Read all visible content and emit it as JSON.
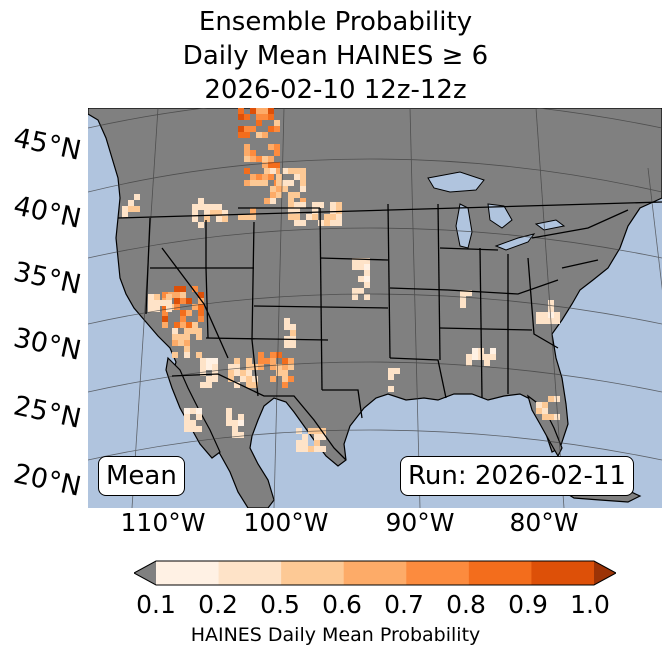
{
  "title": {
    "line1": "Ensemble Probability",
    "line2": "Daily Mean HAINES ≥ 6",
    "line3": "2026-02-10 12z-12z"
  },
  "badges": {
    "statistic": "Mean",
    "run": "Run: 2026-02-11"
  },
  "lat_labels": [
    "45°N",
    "40°N",
    "35°N",
    "30°N",
    "25°N",
    "20°N"
  ],
  "lon_labels": [
    "110°W",
    "100°W",
    "90°W",
    "80°W"
  ],
  "colorbar": {
    "ticks": [
      "0.1",
      "0.2",
      "0.5",
      "0.6",
      "0.7",
      "0.8",
      "0.9",
      "1.0"
    ],
    "colors": [
      "#fff1e4",
      "#fee3c8",
      "#fdc995",
      "#fdab68",
      "#fc8b3e",
      "#f36d1c",
      "#dd5008"
    ],
    "under_color": "#808080",
    "over_color": "#9c3306",
    "label": "HAINES Daily Mean Probability"
  },
  "map_colors": {
    "ocean": "#b0c4de",
    "land": "#808080",
    "border": "#000000",
    "grid": "#3a3a3a"
  }
}
